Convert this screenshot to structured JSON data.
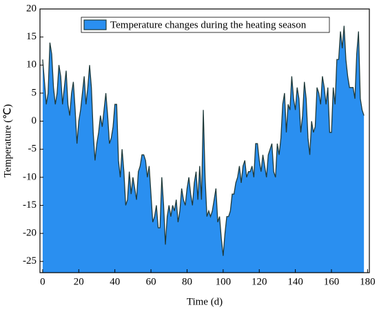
{
  "chart_data": {
    "type": "area",
    "xlabel": "Time (d)",
    "ylabel": "Temperature (℃)",
    "xlim": [
      -1.5,
      181
    ],
    "ylim": [
      -27,
      20
    ],
    "xticks": [
      0,
      20,
      40,
      60,
      80,
      100,
      120,
      140,
      160,
      180
    ],
    "yticks": [
      -25,
      -20,
      -15,
      -10,
      -5,
      0,
      5,
      10,
      15,
      20
    ],
    "legend": "top",
    "x": [
      0,
      1,
      2,
      3,
      4,
      5,
      6,
      7,
      8,
      9,
      10,
      11,
      12,
      13,
      14,
      15,
      16,
      17,
      18,
      19,
      20,
      21,
      22,
      23,
      24,
      25,
      26,
      27,
      28,
      29,
      30,
      31,
      32,
      33,
      34,
      35,
      36,
      37,
      38,
      39,
      40,
      41,
      42,
      43,
      44,
      45,
      46,
      47,
      48,
      49,
      50,
      51,
      52,
      53,
      54,
      55,
      56,
      57,
      58,
      59,
      60,
      61,
      62,
      63,
      64,
      65,
      66,
      67,
      68,
      69,
      70,
      71,
      72,
      73,
      74,
      75,
      76,
      77,
      78,
      79,
      80,
      81,
      82,
      83,
      84,
      85,
      86,
      87,
      88,
      89,
      90,
      91,
      92,
      93,
      94,
      95,
      96,
      97,
      98,
      99,
      100,
      101,
      102,
      103,
      104,
      105,
      106,
      107,
      108,
      109,
      110,
      111,
      112,
      113,
      114,
      115,
      116,
      117,
      118,
      119,
      120,
      121,
      122,
      123,
      124,
      125,
      126,
      127,
      128,
      129,
      130,
      131,
      132,
      133,
      134,
      135,
      136,
      137,
      138,
      139,
      140,
      141,
      142,
      143,
      144,
      145,
      146,
      147,
      148,
      149,
      150,
      151,
      152,
      153,
      154,
      155,
      156,
      157,
      158,
      159,
      160,
      161,
      162,
      163,
      164,
      165,
      166,
      167,
      168,
      169,
      170,
      171,
      172,
      173,
      174,
      175,
      176,
      177,
      178
    ],
    "series": [
      {
        "name": "Temperature changes during the heating season",
        "color": "#2a8ff0",
        "edge_color": "#1f3a3a",
        "values": [
          11,
          7,
          3,
          5,
          14,
          12,
          6,
          3,
          5,
          10,
          8,
          3,
          6,
          9,
          3,
          1,
          5,
          7,
          2,
          -4,
          0,
          2,
          5,
          8,
          3,
          6,
          10,
          6,
          -2,
          -7,
          -4,
          -2,
          1,
          -1,
          2,
          5,
          1,
          -4,
          -3,
          -1,
          3,
          3,
          -7,
          -10,
          -5,
          -9,
          -15,
          -14,
          -9,
          -13,
          -10,
          -12,
          -14,
          -9,
          -8,
          -6,
          -6,
          -7,
          -10,
          -8,
          -13,
          -18,
          -17,
          -15,
          -19,
          -19,
          -10,
          -15,
          -22,
          -17,
          -15,
          -17,
          -15,
          -16,
          -14,
          -18,
          -16,
          -12,
          -14,
          -15,
          -12,
          -10,
          -13,
          -15,
          -11,
          -9,
          -14,
          -8,
          -14,
          2,
          -10,
          -17,
          -16,
          -17,
          -16,
          -14,
          -12,
          -18,
          -17,
          -21,
          -24,
          -20,
          -17,
          -17,
          -16,
          -13,
          -13,
          -11,
          -10,
          -8,
          -11,
          -8,
          -7,
          -10,
          -9,
          -9,
          -8,
          -10,
          -4,
          -4,
          -7,
          -9,
          -6,
          -8,
          -10,
          -6,
          -5,
          -4,
          -9,
          -10,
          -4,
          -6,
          -3,
          3,
          5,
          -2,
          3,
          2,
          8,
          4,
          2,
          6,
          4,
          -2,
          1,
          7,
          4,
          -3,
          -6,
          0,
          -2,
          -1,
          6,
          5,
          3,
          8,
          6,
          3,
          6,
          -2,
          -2,
          6,
          3,
          11,
          11,
          16,
          13,
          17,
          11,
          8,
          6,
          6,
          6,
          4,
          12,
          16,
          4,
          2,
          1
        ]
      }
    ]
  }
}
